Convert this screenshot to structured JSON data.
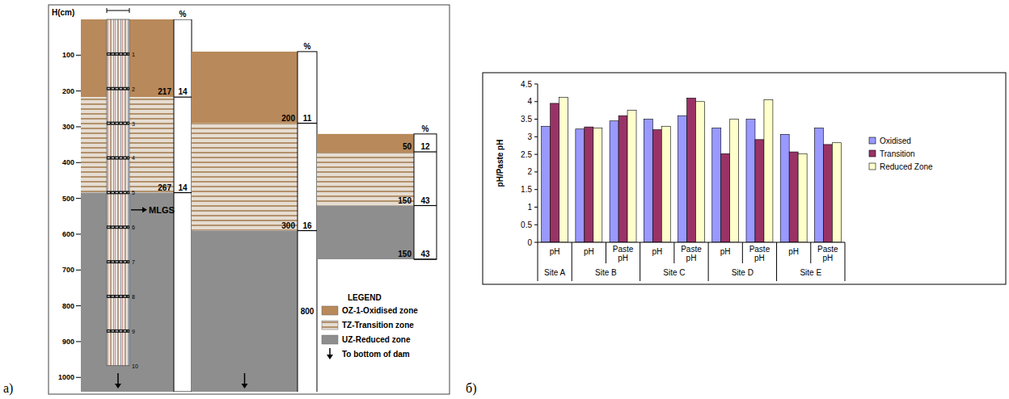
{
  "figure": {
    "panel_labels": [
      "a)",
      "б)"
    ]
  },
  "diagram": {
    "axis": {
      "title": "H(cm)",
      "ylim": [
        0,
        1040
      ],
      "yticks": [
        100,
        200,
        300,
        400,
        500,
        600,
        700,
        800,
        900,
        1000
      ]
    },
    "percent_header": "%",
    "core": {
      "sample_labels": [
        "1",
        "2",
        "3",
        "4",
        "5",
        "6",
        "7",
        "8",
        "9",
        "10"
      ],
      "marker_label": "MLGS"
    },
    "profiles": [
      {
        "top": 0,
        "zones": [
          {
            "thickness": 217,
            "percent": 14
          },
          {
            "thickness": 267,
            "percent": 14
          },
          {
            "thickness": null,
            "percent": null
          }
        ]
      },
      {
        "top": 90,
        "zones": [
          {
            "thickness": 200,
            "percent": 11
          },
          {
            "thickness": 300,
            "percent": 16
          },
          {
            "thickness": 800,
            "percent": null
          }
        ]
      },
      {
        "top": 320,
        "zones": [
          {
            "thickness": 50,
            "percent": 12
          },
          {
            "thickness": 150,
            "percent": 43
          },
          {
            "thickness": 150,
            "percent": 43
          }
        ]
      }
    ],
    "legend": {
      "title": "LEGEND",
      "items": [
        {
          "label": "OZ-1-Oxidised zone",
          "color": "#b8895a"
        },
        {
          "label": "TZ-Transition zone",
          "color": "#a57d52"
        },
        {
          "label": "UZ-Reduced zone",
          "color": "#8e8e8e"
        }
      ],
      "arrow_label": "To bottom of dam"
    }
  },
  "chart_data": {
    "type": "bar",
    "y_label": "pH/Paste pH",
    "categories": [
      "pH",
      "pH",
      "Paste pH",
      "pH",
      "Paste pH",
      "pH",
      "Paste pH",
      "pH",
      "Paste pH"
    ],
    "groups": [
      {
        "label": "Site A",
        "size": 1
      },
      {
        "label": "Site B",
        "size": 2
      },
      {
        "label": "Site C",
        "size": 2
      },
      {
        "label": "Site D",
        "size": 2
      },
      {
        "label": "Site E",
        "size": 2
      }
    ],
    "series": [
      {
        "name": "Oxidised",
        "color": "#9999ff",
        "values": [
          3.3,
          3.22,
          3.45,
          3.5,
          3.6,
          3.25,
          3.5,
          3.07,
          3.25
        ]
      },
      {
        "name": "Transition",
        "color": "#993366",
        "values": [
          3.95,
          3.28,
          3.6,
          3.2,
          4.1,
          2.52,
          2.92,
          2.57,
          2.78
        ]
      },
      {
        "name": "Reduced Zone",
        "color": "#ffffcc",
        "values": [
          4.12,
          3.25,
          3.75,
          3.3,
          4.0,
          3.5,
          4.05,
          2.52,
          2.83
        ]
      }
    ],
    "ylim": [
      0,
      4.5
    ],
    "yticks": [
      0,
      0.5,
      1,
      1.5,
      2,
      2.5,
      3,
      3.5,
      4,
      4.5
    ],
    "legend": "right"
  }
}
